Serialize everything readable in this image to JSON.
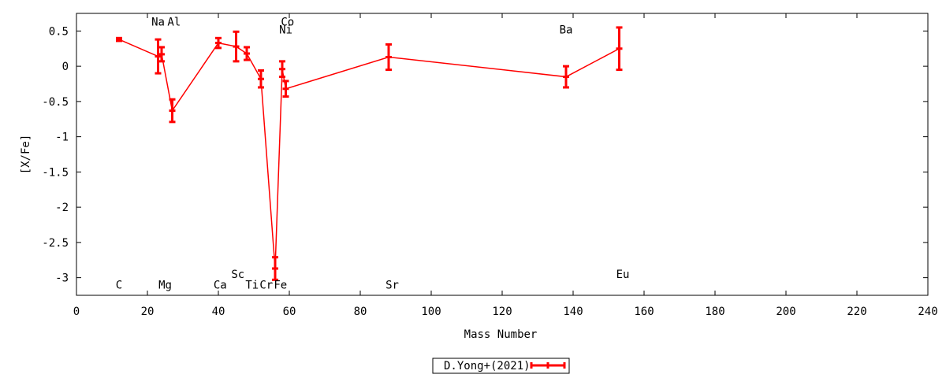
{
  "chart_data": {
    "type": "line",
    "xlabel": "Mass Number",
    "ylabel": "[X/Fe]",
    "xlim": [
      0,
      240
    ],
    "ylim": [
      -3.25,
      0.75
    ],
    "xticks": [
      0,
      20,
      40,
      60,
      80,
      100,
      120,
      140,
      160,
      180,
      200,
      220,
      240
    ],
    "xtick_labels": [
      "0",
      "20",
      "40",
      "60",
      "80",
      "100",
      "120",
      "140",
      "160",
      "180",
      "200",
      "220",
      "240"
    ],
    "yticks": [
      0.5,
      0,
      -0.5,
      -1,
      -1.5,
      -2,
      -2.5,
      -3
    ],
    "ytick_labels": [
      "0.5",
      "0",
      "-0.5",
      "-1",
      "-1.5",
      "-2",
      "-2.5",
      "-3"
    ],
    "grid": false,
    "legend": {
      "position": "bottom-center",
      "entries": [
        "D.Yong+(2021)"
      ]
    },
    "colors": {
      "series": "#ff0000",
      "axis": "#000000",
      "background": "#ffffff"
    },
    "series": [
      {
        "name": "D.Yong+(2021)",
        "points": [
          {
            "x": 12,
            "y": 0.38,
            "err": 0.02
          },
          {
            "x": 23,
            "y": 0.14,
            "err": 0.24
          },
          {
            "x": 24,
            "y": 0.17,
            "err": 0.1
          },
          {
            "x": 27,
            "y": -0.63,
            "err": 0.16
          },
          {
            "x": 40,
            "y": 0.33,
            "err": 0.07
          },
          {
            "x": 45,
            "y": 0.28,
            "err": 0.21
          },
          {
            "x": 48,
            "y": 0.18,
            "err": 0.09
          },
          {
            "x": 52,
            "y": -0.18,
            "err": 0.12
          },
          {
            "x": 56,
            "y": -2.87,
            "err": 0.16
          },
          {
            "x": 58,
            "y": -0.04,
            "err": 0.11
          },
          {
            "x": 59,
            "y": -0.32,
            "err": 0.11
          },
          {
            "x": 88,
            "y": 0.13,
            "err": 0.18
          },
          {
            "x": 138,
            "y": -0.15,
            "err": 0.15
          },
          {
            "x": 153,
            "y": 0.25,
            "err": 0.3
          }
        ]
      }
    ],
    "annotations": [
      {
        "text": "C",
        "x": 12,
        "y": -3.1
      },
      {
        "text": "Na",
        "x": 23,
        "y": 0.63
      },
      {
        "text": "Mg",
        "x": 25,
        "y": -3.1
      },
      {
        "text": "Al",
        "x": 27.5,
        "y": 0.63
      },
      {
        "text": "Ca",
        "x": 40.5,
        "y": -3.1
      },
      {
        "text": "Sc",
        "x": 45.5,
        "y": -2.95
      },
      {
        "text": "Ti",
        "x": 49.5,
        "y": -3.1
      },
      {
        "text": "Cr",
        "x": 53.5,
        "y": -3.1
      },
      {
        "text": "Fe",
        "x": 57.5,
        "y": -3.1
      },
      {
        "text": "Co",
        "x": 59.5,
        "y": 0.63
      },
      {
        "text": "Ni",
        "x": 59,
        "y": 0.52
      },
      {
        "text": "Sr",
        "x": 89,
        "y": -3.1
      },
      {
        "text": "Ba",
        "x": 138,
        "y": 0.52
      },
      {
        "text": "Eu",
        "x": 154,
        "y": -2.95
      }
    ]
  }
}
